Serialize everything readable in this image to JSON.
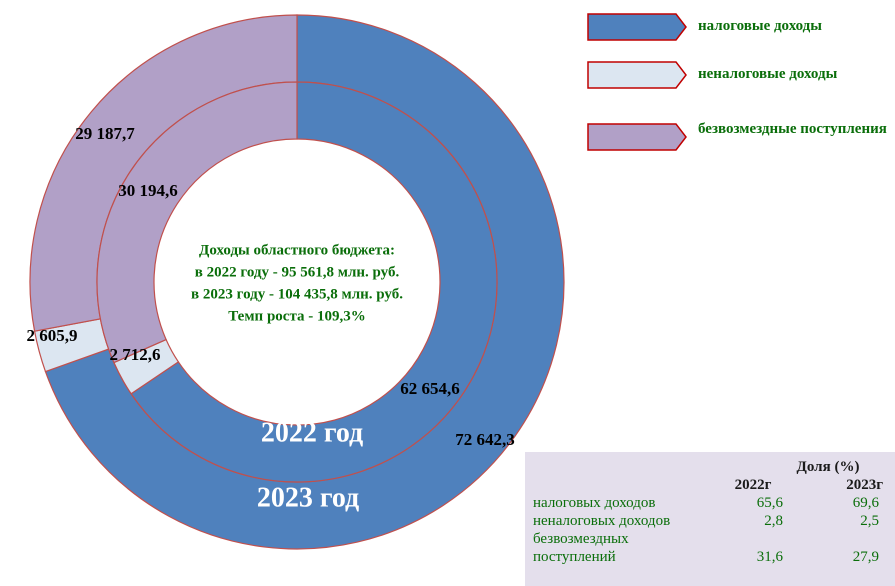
{
  "chart_data": {
    "type": "pie",
    "categories": [
      "налоговые доходы",
      "неналоговые доходы",
      "безвозмездные поступления"
    ],
    "colors": [
      "#4f81bd",
      "#dce6f1",
      "#b1a0c7"
    ],
    "series": [
      {
        "name": "2022 год",
        "values": [
          62654.6,
          2712.6,
          30194.6
        ],
        "value_labels": [
          "62 654,6",
          "2 712,6",
          "30 194,6"
        ]
      },
      {
        "name": "2023 год",
        "values": [
          72642.3,
          2605.9,
          29187.7
        ],
        "value_labels": [
          "72 642,3",
          "2 605,9",
          "29 187,7"
        ]
      }
    ],
    "center_text": [
      "Доходы областного бюджета:",
      "в 2022 году -  95 561,8  млн. руб.",
      "в 2023 году - 104 435,8 млн. руб.",
      "Темп роста - 109,3%"
    ]
  },
  "table": {
    "title": "Доля (%)",
    "columns": [
      "2022г",
      "2023г"
    ],
    "rows": [
      {
        "label": "налоговых доходов",
        "values": [
          "65,6",
          "69,6"
        ]
      },
      {
        "label": "неналоговых доходов",
        "values": [
          "2,8",
          "2,5"
        ]
      },
      {
        "label": "безвозмездных поступлений",
        "values": [
          "31,6",
          "27,9"
        ]
      }
    ]
  }
}
